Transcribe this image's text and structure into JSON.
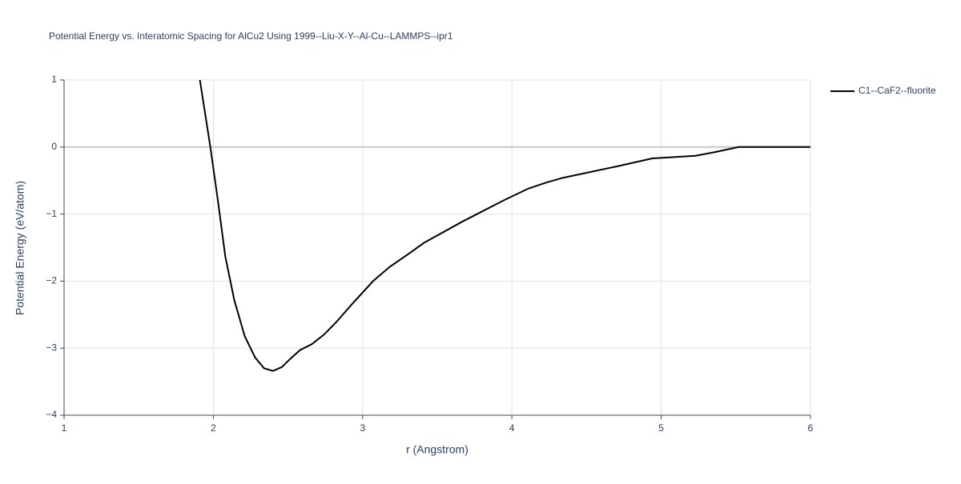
{
  "chart_data": {
    "type": "line",
    "title": "Potential Energy vs. Interatomic Spacing for AlCu2 Using 1999--Liu-X-Y--Al-Cu--LAMMPS--ipr1",
    "x_label": "r (Angstrom)",
    "y_label": "Potential Energy (eV/atom)",
    "x": [
      1.91,
      1.98,
      2.03,
      2.08,
      2.14,
      2.21,
      2.28,
      2.34,
      2.4,
      2.46,
      2.51,
      2.58,
      2.66,
      2.74,
      2.82,
      2.93,
      3.07,
      3.18,
      3.31,
      3.41,
      3.67,
      3.95,
      4.11,
      4.23,
      4.34,
      4.7,
      4.94,
      5.23,
      5.35,
      5.52,
      6.0
    ],
    "series": [
      {
        "name": "C1--CaF2--fluorite",
        "color": "#000000",
        "values": [
          1.0,
          0,
          -0.79,
          -1.63,
          -2.28,
          -2.82,
          -3.14,
          -3.3,
          -3.34,
          -3.28,
          -3.17,
          -3.03,
          -2.94,
          -2.8,
          -2.62,
          -2.34,
          -2.0,
          -1.79,
          -1.59,
          -1.43,
          -1.11,
          -0.79,
          -0.62,
          -0.53,
          -0.46,
          -0.29,
          -0.17,
          -0.13,
          -0.08,
          0,
          0
        ]
      }
    ],
    "xlim": [
      1,
      6
    ],
    "ylim": [
      -4,
      1
    ],
    "xticks": [
      1,
      2,
      3,
      4,
      5,
      6
    ],
    "yticks": [
      {
        "value": -4,
        "label": "−4"
      },
      {
        "value": -3,
        "label": "−3"
      },
      {
        "value": -2,
        "label": "−2"
      },
      {
        "value": -1,
        "label": "−1"
      },
      0,
      1
    ],
    "grid": true,
    "legend": "right"
  }
}
